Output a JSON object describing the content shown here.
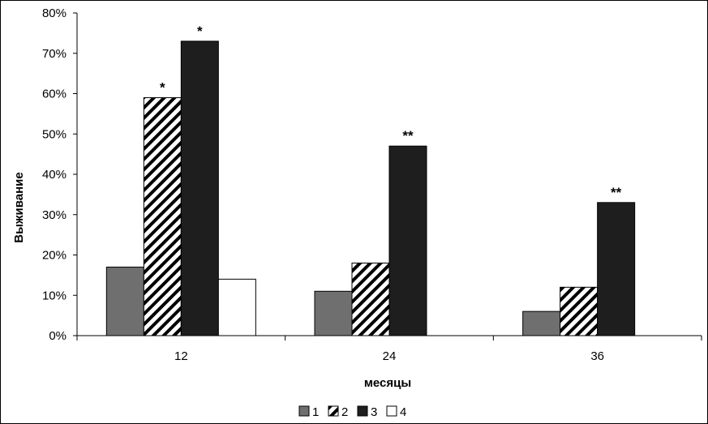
{
  "chart_data": {
    "type": "bar",
    "title": "",
    "xlabel": "месяцы",
    "ylabel": "Выживание",
    "categories": [
      "12",
      "24",
      "36"
    ],
    "ylim": [
      0,
      80
    ],
    "yticks": [
      "0%",
      "10%",
      "20%",
      "30%",
      "40%",
      "50%",
      "60%",
      "70%",
      "80%"
    ],
    "grid": false,
    "legend_position": "bottom",
    "series": [
      {
        "name": "1",
        "values": [
          17,
          11,
          6
        ],
        "fill": "#6f6f6f",
        "pattern": "solid"
      },
      {
        "name": "2",
        "values": [
          59,
          18,
          12
        ],
        "fill": "#ffffff",
        "pattern": "diagonal-hatch"
      },
      {
        "name": "3",
        "values": [
          73,
          47,
          33
        ],
        "fill": "#1e1e1e",
        "pattern": "solid"
      },
      {
        "name": "4",
        "values": [
          14,
          null,
          null
        ],
        "fill": "#ffffff",
        "pattern": "none"
      }
    ],
    "annotations": [
      {
        "category": "12",
        "series": "2",
        "text": "*"
      },
      {
        "category": "12",
        "series": "3",
        "text": "*"
      },
      {
        "category": "24",
        "series": "3",
        "text": "**"
      },
      {
        "category": "36",
        "series": "3",
        "text": "**"
      }
    ]
  }
}
